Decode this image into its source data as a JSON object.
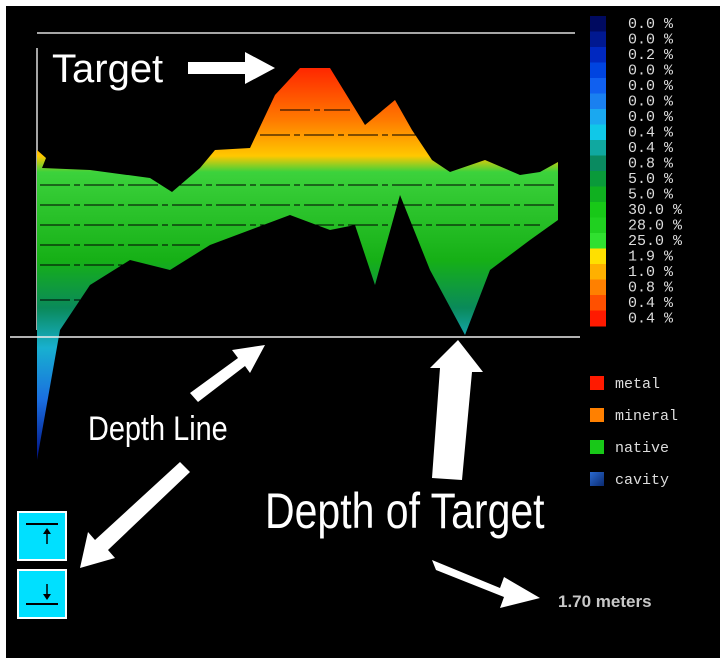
{
  "annotations": {
    "target": "Target",
    "depth_line": "Depth Line",
    "depth_of_target": "Depth of Target",
    "depth_value": "1.70 meters"
  },
  "scale": {
    "labels": [
      "0.0 %",
      "0.0 %",
      "0.2 %",
      "0.0 %",
      "0.0 %",
      "0.0 %",
      "0.0 %",
      "0.4 %",
      "0.4 %",
      "0.8 %",
      "5.0 %",
      "5.0 %",
      "30.0 %",
      "28.0 %",
      "25.0 %",
      "1.9 %",
      "1.0 %",
      "0.8 %",
      "0.4 %",
      "0.4 %"
    ]
  },
  "legend": {
    "items": [
      "metal",
      "mineral",
      "native",
      "cavity"
    ]
  }
}
